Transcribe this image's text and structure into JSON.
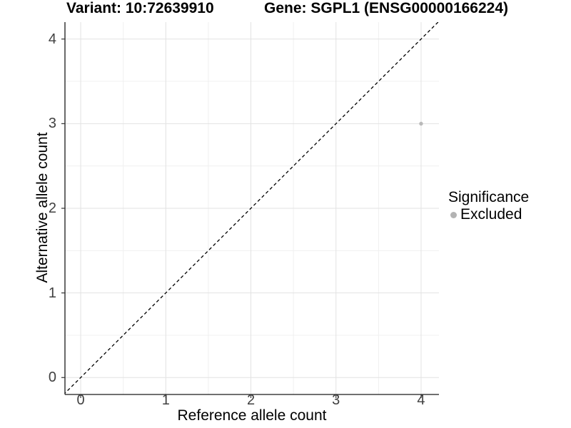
{
  "header": {
    "title_left": "Variant: 10:72639910",
    "title_right": "Gene: SGPL1 (ENSG00000166224)"
  },
  "chart_data": {
    "type": "scatter",
    "title": "Variant: 10:72639910  Gene: SGPL1 (ENSG00000166224)",
    "xlabel": "Reference allele count",
    "ylabel": "Alternative allele count",
    "xlim": [
      -0.185,
      4.21
    ],
    "ylim": [
      -0.2,
      4.2
    ],
    "x_ticks": [
      0,
      1,
      2,
      3,
      4
    ],
    "y_ticks": [
      0,
      1,
      2,
      3,
      4
    ],
    "x_minor_ticks": [
      0.5,
      1.5,
      2.5,
      3.5
    ],
    "y_minor_ticks": [
      0.5,
      1.5,
      2.5,
      3.5
    ],
    "grid": "major and minor, light gray on white",
    "points": [
      {
        "x": 4,
        "y": 3,
        "significance": "Excluded"
      }
    ],
    "reference_line": {
      "kind": "identity y=x",
      "style": "dashed",
      "color": "#000000",
      "from": -0.25,
      "to": 4.3
    },
    "legend": {
      "title": "Significance",
      "position": "right",
      "items": [
        {
          "label": "Excluded",
          "color": "#b3b3b3",
          "marker": "dot"
        }
      ]
    },
    "colors": {
      "background": "#ffffff",
      "point": "#b9b9b9",
      "grid_major": "#e2e2e2",
      "grid_minor": "#f0f0f0",
      "axis_line": "#1a1a1a",
      "tick_mark": "#333333",
      "tick_label": "#404040"
    }
  }
}
